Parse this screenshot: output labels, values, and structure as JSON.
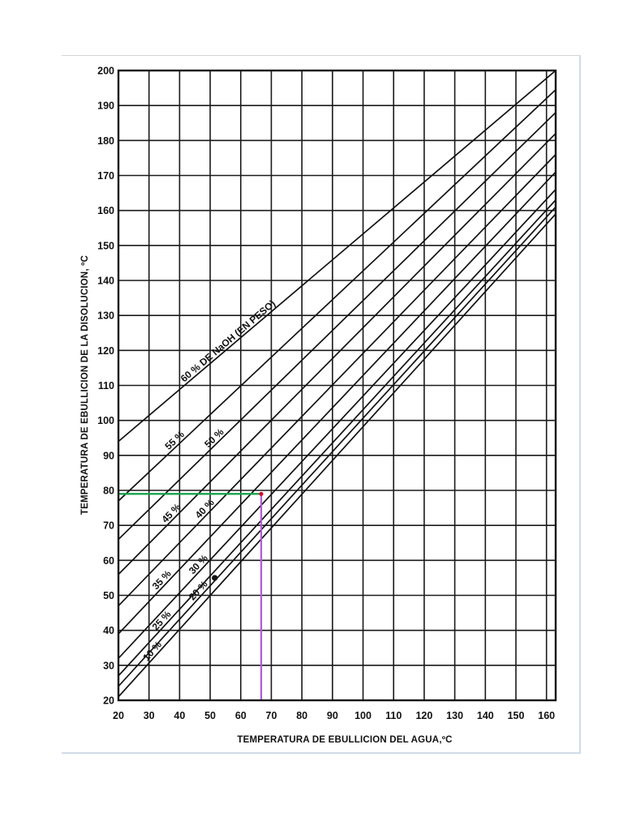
{
  "chart_data": {
    "type": "line",
    "xlabel": "TEMPERATURA DE EBULLICION DEL AGUA,ºC",
    "ylabel": "TEMPERATURA DE EBULLICION DE LA DISOLUCION, ºC",
    "xlim": [
      20,
      163
    ],
    "ylim": [
      20,
      200
    ],
    "xticks": [
      20,
      30,
      40,
      50,
      60,
      70,
      80,
      90,
      100,
      110,
      120,
      130,
      140,
      150,
      160
    ],
    "yticks": [
      20,
      30,
      40,
      50,
      60,
      70,
      80,
      90,
      100,
      110,
      120,
      130,
      140,
      150,
      160,
      170,
      180,
      190,
      200
    ],
    "grid": true,
    "series": [
      {
        "name": "60 % DE NaOH (EN PESO)",
        "x": [
          20,
          163
        ],
        "y": [
          94,
          200
        ]
      },
      {
        "name": "55 %",
        "x": [
          20,
          163
        ],
        "y": [
          77,
          194.5
        ]
      },
      {
        "name": "50 %",
        "x": [
          20,
          163
        ],
        "y": [
          66,
          188
        ]
      },
      {
        "name": "45 %",
        "x": [
          20,
          163
        ],
        "y": [
          56,
          182
        ]
      },
      {
        "name": "40 %",
        "x": [
          20,
          163
        ],
        "y": [
          47,
          176
        ]
      },
      {
        "name": "35 %",
        "x": [
          20,
          163
        ],
        "y": [
          39,
          171
        ]
      },
      {
        "name": "30 %",
        "x": [
          20,
          163
        ],
        "y": [
          32,
          166
        ]
      },
      {
        "name": "25 %",
        "x": [
          20,
          163
        ],
        "y": [
          27,
          163
        ]
      },
      {
        "name": "20 %",
        "x": [
          20,
          163
        ],
        "y": [
          24,
          161
        ]
      },
      {
        "name": "10 %",
        "x": [
          20,
          163
        ],
        "y": [
          21,
          159
        ]
      }
    ],
    "annotations": [
      {
        "type": "hline",
        "y": 79,
        "x": [
          20,
          66.7
        ],
        "color": "#17a34a"
      },
      {
        "type": "vline",
        "x": 66.7,
        "y": [
          20,
          79
        ],
        "color": "#b05ad6"
      },
      {
        "type": "point",
        "x": 66.7,
        "y": 79,
        "color": "#d01030"
      },
      {
        "type": "point",
        "x": 51.5,
        "y": 55,
        "color": "#111111"
      }
    ]
  }
}
